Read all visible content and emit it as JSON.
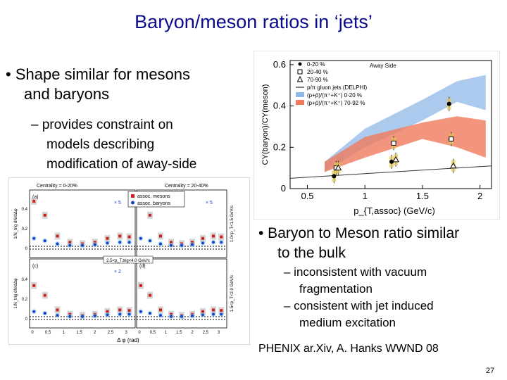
{
  "slide": {
    "title": "Baryon/meson ratios in ‘jets’",
    "bullet1_line1": "• Shape similar for mesons",
    "bullet1_line2": "and baryons",
    "sub1_line1": "– provides constraint on",
    "sub1_line2": "models describing",
    "sub1_line3": "modification of away-side",
    "bullet2_line1": "• Baryon to Meson ratio similar",
    "bullet2_line2": "to the bulk",
    "sub2_line1": "– inconsistent with vacuum",
    "sub2_line2": "fragmentation",
    "sub2_line3": "– consistent with jet induced",
    "sub2_line4": "medium excitation",
    "credit": "PHENIX ar.Xiv, A. Hanks WWND 08",
    "page_number": "27"
  },
  "colors": {
    "title": "#0a0a8c",
    "band_central": "#8fb8e8",
    "band_peripheral": "#f07a5c",
    "mesons": "#cc1f1f",
    "baryons": "#1a3fcc",
    "delphi_line": "#333333"
  },
  "chart_data": [
    {
      "type": "scatter",
      "title": "",
      "xlabel": "p_{T,assoc} (GeV/c)",
      "ylabel": "CY(baryon)/CY(meson)",
      "xlim": [
        0.35,
        2.1
      ],
      "ylim": [
        0,
        0.62
      ],
      "x_ticks": [
        "0.5",
        "1",
        "1.5",
        "2"
      ],
      "y_ticks": [
        "0",
        "0.2",
        "0.4",
        "0.6"
      ],
      "annotation": "Away Side",
      "legend_position": "top-right",
      "legend": [
        "0-20 %",
        "20-40 %",
        "70-90 %",
        "p/π gluon jets (DELPHI)",
        "(p+p̄)/(π⁺+K⁺) 0-20 %",
        "(p+p̄)/(π⁺+K⁺) 70-92 %"
      ],
      "series": [
        {
          "name": "0-20 %",
          "marker": "circle",
          "x": [
            0.75,
            1.25,
            1.75
          ],
          "y": [
            0.06,
            0.13,
            0.41
          ]
        },
        {
          "name": "20-40 %",
          "marker": "square",
          "x": [
            0.75,
            1.25,
            1.75
          ],
          "y": [
            0.1,
            0.22,
            0.24
          ]
        },
        {
          "name": "70-90 %",
          "marker": "triangle",
          "x": [
            0.75,
            1.25,
            1.75
          ],
          "y": [
            0.1,
            0.14,
            0.11
          ]
        }
      ],
      "lines": [
        {
          "name": "p/π gluon jets (DELPHI)",
          "x": [
            0.35,
            2.1
          ],
          "y": [
            0.05,
            0.11
          ]
        }
      ],
      "bands": [
        {
          "name": "(p+p̄)/(π⁺+K⁺) 0-20 %",
          "x": [
            0.65,
            1.0,
            1.5,
            1.8,
            2.05
          ],
          "low": [
            0.08,
            0.2,
            0.33,
            0.42,
            0.38
          ],
          "high": [
            0.13,
            0.29,
            0.43,
            0.52,
            0.55
          ]
        },
        {
          "name": "(p+p̄)/(π⁺+K⁺) 70-92 %",
          "x": [
            0.65,
            1.0,
            1.5,
            1.8,
            2.05
          ],
          "low": [
            0.08,
            0.15,
            0.24,
            0.2,
            0.15
          ],
          "high": [
            0.13,
            0.25,
            0.32,
            0.35,
            0.33
          ]
        }
      ]
    },
    {
      "type": "scatter",
      "title": "",
      "xlabel": "Δ φ (rad)",
      "ylabel": "1/N_trig dN/dΔφ",
      "x_ticks": [
        "0",
        "0.5",
        "1",
        "1.5",
        "2",
        "2.5",
        "3"
      ],
      "panels": [
        {
          "label": "(a)",
          "header": "Centrality = 0-20%",
          "scale_note": "× 5",
          "y_ticks": [
            "0",
            "0.2",
            "0.4"
          ]
        },
        {
          "label": "(b)",
          "header": "Centrality = 20-40%",
          "scale_note": "× 5",
          "side_label": "1.0<p_T<1.5 GeV/c"
        },
        {
          "label": "(c)",
          "scale_note": "× 2",
          "y_ticks": [
            "0",
            "0.2",
            "0.4"
          ]
        },
        {
          "label": "(d)",
          "side_label": "1.5<p_T<2.0 GeV/c"
        }
      ],
      "legend": [
        "assoc. mesons",
        "assoc. baryons"
      ],
      "annotation": "2.5<p_T,trig<4.0 GeV/c",
      "series": [
        {
          "name": "assoc. mesons",
          "x": [
            0.05,
            0.4,
            0.8,
            1.2,
            1.6,
            2.0,
            2.4,
            2.8,
            3.1
          ],
          "y": [
            0.6,
            0.42,
            0.15,
            0.07,
            0.05,
            0.07,
            0.12,
            0.15,
            0.14
          ]
        },
        {
          "name": "assoc. baryons",
          "x": [
            0.05,
            0.4,
            0.8,
            1.2,
            1.6,
            2.0,
            2.4,
            2.8,
            3.1
          ],
          "y": [
            0.12,
            0.09,
            0.05,
            0.03,
            0.03,
            0.04,
            0.06,
            0.07,
            0.07
          ]
        }
      ]
    }
  ]
}
